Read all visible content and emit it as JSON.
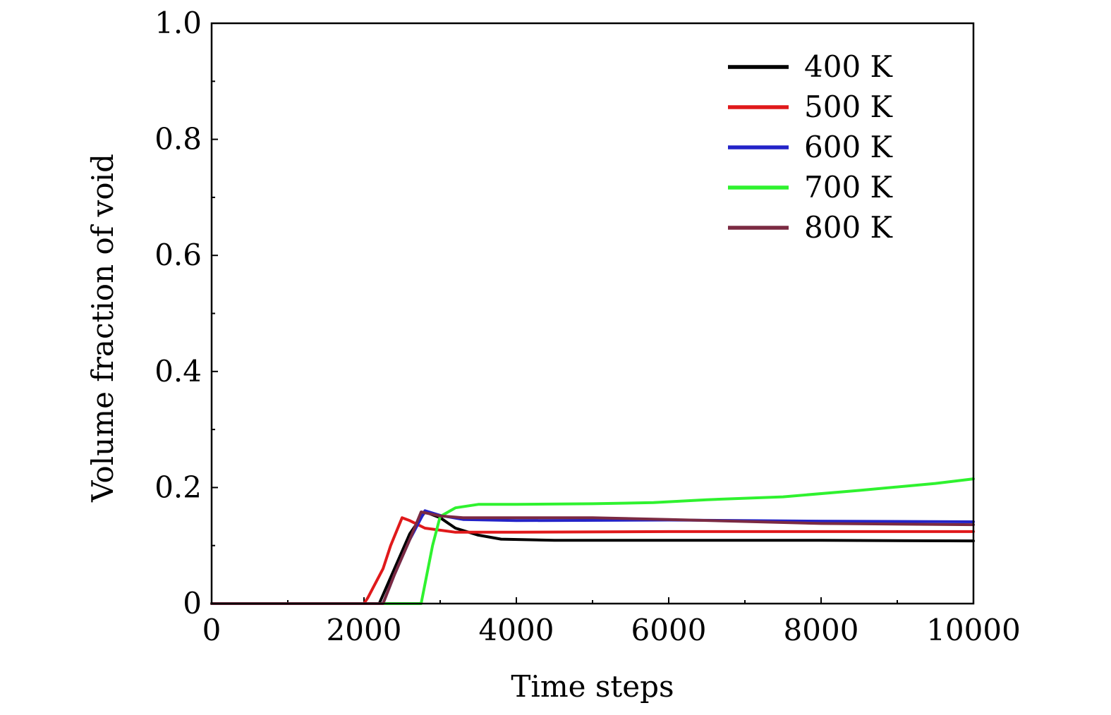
{
  "chart_data": {
    "type": "line",
    "xlabel": "Time steps",
    "ylabel": "Volume fraction of void",
    "xlim": [
      0,
      10000
    ],
    "ylim": [
      0,
      1.0
    ],
    "x_ticks": [
      0,
      2000,
      4000,
      6000,
      8000,
      10000
    ],
    "x_tick_labels": [
      "0",
      "2000",
      "4000",
      "6000",
      "8000",
      "10000"
    ],
    "y_ticks": [
      0,
      0.2,
      0.4,
      0.6,
      0.8,
      1.0
    ],
    "y_tick_labels": [
      "0",
      "0.2",
      "0.4",
      "0.6",
      "0.8",
      "1.0"
    ],
    "grid": false,
    "legend_position": "top-right",
    "series": [
      {
        "name": "400 K",
        "color": "#000000",
        "points": [
          [
            0,
            0
          ],
          [
            2200,
            0
          ],
          [
            2400,
            0.06
          ],
          [
            2600,
            0.12
          ],
          [
            2800,
            0.158
          ],
          [
            3000,
            0.148
          ],
          [
            3200,
            0.13
          ],
          [
            3500,
            0.118
          ],
          [
            3800,
            0.111
          ],
          [
            4500,
            0.109
          ],
          [
            6000,
            0.109
          ],
          [
            8000,
            0.109
          ],
          [
            10000,
            0.108
          ]
        ]
      },
      {
        "name": "500 K",
        "color": "#e0191b",
        "points": [
          [
            0,
            0
          ],
          [
            2000,
            0
          ],
          [
            2050,
            0.01
          ],
          [
            2250,
            0.06
          ],
          [
            2350,
            0.1
          ],
          [
            2500,
            0.148
          ],
          [
            2600,
            0.143
          ],
          [
            2800,
            0.13
          ],
          [
            3200,
            0.123
          ],
          [
            4000,
            0.123
          ],
          [
            6000,
            0.124
          ],
          [
            8000,
            0.124
          ],
          [
            10000,
            0.124
          ]
        ]
      },
      {
        "name": "600 K",
        "color": "#2323c8",
        "points": [
          [
            0,
            0
          ],
          [
            2250,
            0
          ],
          [
            2400,
            0.05
          ],
          [
            2600,
            0.11
          ],
          [
            2800,
            0.16
          ],
          [
            3000,
            0.152
          ],
          [
            3300,
            0.145
          ],
          [
            4000,
            0.143
          ],
          [
            6000,
            0.144
          ],
          [
            8000,
            0.142
          ],
          [
            10000,
            0.141
          ]
        ]
      },
      {
        "name": "700 K",
        "color": "#2ff22f",
        "points": [
          [
            0,
            0
          ],
          [
            2750,
            0
          ],
          [
            2900,
            0.1
          ],
          [
            3000,
            0.15
          ],
          [
            3200,
            0.165
          ],
          [
            3500,
            0.171
          ],
          [
            4000,
            0.171
          ],
          [
            5000,
            0.172
          ],
          [
            5800,
            0.174
          ],
          [
            6500,
            0.179
          ],
          [
            7500,
            0.184
          ],
          [
            8500,
            0.195
          ],
          [
            9500,
            0.207
          ],
          [
            10000,
            0.215
          ]
        ]
      },
      {
        "name": "800 K",
        "color": "#7b2a42",
        "points": [
          [
            0,
            0
          ],
          [
            2250,
            0
          ],
          [
            2400,
            0.05
          ],
          [
            2600,
            0.11
          ],
          [
            2750,
            0.158
          ],
          [
            3000,
            0.151
          ],
          [
            3300,
            0.148
          ],
          [
            4000,
            0.148
          ],
          [
            5000,
            0.148
          ],
          [
            6000,
            0.145
          ],
          [
            8000,
            0.138
          ],
          [
            10000,
            0.136
          ]
        ]
      }
    ]
  }
}
